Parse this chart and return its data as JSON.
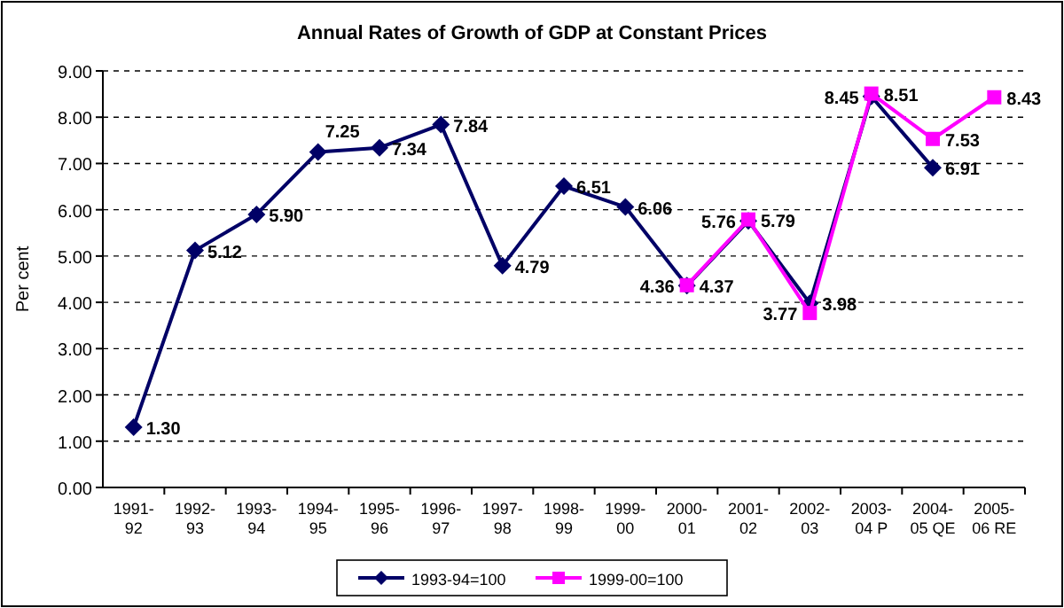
{
  "chart_data": {
    "type": "line",
    "title": "Annual Rates of Growth of GDP at Constant Prices",
    "ylabel": "Per cent",
    "categories": [
      "1991-92",
      "1992-93",
      "1993-94",
      "1994-95",
      "1995-96",
      "1996-97",
      "1997-98",
      "1998-99",
      "1999-00",
      "2000-01",
      "2001-02",
      "2002-03",
      "2003-04 P",
      "2004-05 QE",
      "2005-06 RE"
    ],
    "series": [
      {
        "name": "1993-94=100",
        "color": "#000066",
        "marker": "diamond",
        "values": [
          1.3,
          5.12,
          5.9,
          7.25,
          7.34,
          7.84,
          4.79,
          6.51,
          6.06,
          4.36,
          5.76,
          3.98,
          8.45,
          6.91,
          null
        ],
        "value_labels": [
          "1.30",
          "5.12",
          "5.90",
          "7.25",
          "7.34",
          "7.84",
          "4.79",
          "6.51",
          "6.06",
          "4.36",
          "5.76",
          "3.98",
          "8.45",
          "6.91",
          null
        ]
      },
      {
        "name": "1999-00=100",
        "color": "#ff00ff",
        "marker": "square",
        "values": [
          null,
          null,
          null,
          null,
          null,
          null,
          null,
          null,
          null,
          4.37,
          5.79,
          3.77,
          8.51,
          7.53,
          8.43
        ],
        "value_labels": [
          null,
          null,
          null,
          null,
          null,
          null,
          null,
          null,
          null,
          "4.37",
          "5.79",
          "3.77",
          "8.51",
          "7.53",
          "8.43"
        ]
      }
    ],
    "ylim": [
      0,
      9
    ],
    "yticks": [
      {
        "value": 0,
        "label": "0.00"
      },
      {
        "value": 1,
        "label": "1.00"
      },
      {
        "value": 2,
        "label": "2.00"
      },
      {
        "value": 3,
        "label": "3.00"
      },
      {
        "value": 4,
        "label": "4.00"
      },
      {
        "value": 5,
        "label": "5.00"
      },
      {
        "value": 6,
        "label": "6.00"
      },
      {
        "value": 7,
        "label": "7.00"
      },
      {
        "value": 8,
        "label": "8.00"
      },
      {
        "value": 9,
        "label": "9.00"
      }
    ],
    "grid": "y",
    "legend": "bottom",
    "line_style": "solid"
  }
}
